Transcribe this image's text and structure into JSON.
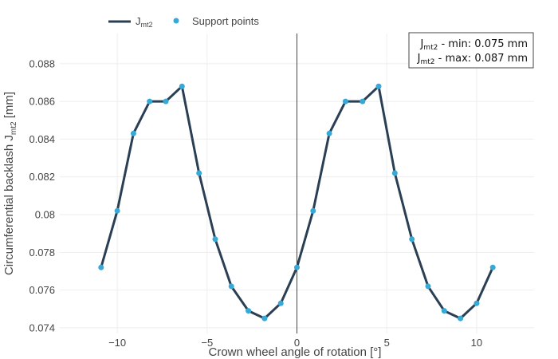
{
  "chart_data": {
    "type": "line",
    "xlabel": "Crown wheel angle of rotation [°]",
    "ylabel": {
      "main": "Circumferential backlash J",
      "sub": "mt2",
      "unit": " [mm]"
    },
    "xlim": [
      -13.2,
      13.2
    ],
    "ylim": [
      0.0737,
      0.0896
    ],
    "x_ticks": [
      -10,
      -5,
      0,
      5,
      10
    ],
    "x_tick_labels": [
      "−10",
      "−5",
      "0",
      "5",
      "10"
    ],
    "y_ticks": [
      0.074,
      0.076,
      0.078,
      0.08,
      0.082,
      0.084,
      0.086,
      0.088
    ],
    "y_tick_labels": [
      "0.074",
      "0.076",
      "0.078",
      "0.08",
      "0.082",
      "0.084",
      "0.086",
      "0.088"
    ],
    "grid": true,
    "zero_line_x": 0,
    "series": [
      {
        "name": "J_mt2",
        "legend_main": "J",
        "legend_sub": "mt2",
        "mode": "line",
        "color": "#2a3f54",
        "x": [
          -10.9,
          -10.0,
          -9.1,
          -8.2,
          -7.3,
          -6.4,
          -5.45,
          -4.55,
          -3.65,
          -2.7,
          -1.8,
          -0.9,
          0.0,
          0.9,
          1.8,
          2.7,
          3.65,
          4.55,
          5.45,
          6.4,
          7.3,
          8.2,
          9.1,
          10.0,
          10.9
        ],
        "y": [
          0.0772,
          0.0802,
          0.0843,
          0.086,
          0.086,
          0.0868,
          0.0822,
          0.0787,
          0.0762,
          0.0749,
          0.0745,
          0.0753,
          0.0772,
          0.0802,
          0.0843,
          0.086,
          0.086,
          0.0868,
          0.0822,
          0.0787,
          0.0762,
          0.0749,
          0.0745,
          0.0753,
          0.0772
        ]
      },
      {
        "name": "Support points",
        "mode": "markers",
        "color": "#36a9d6",
        "x": [
          -10.9,
          -10.0,
          -9.1,
          -8.2,
          -7.3,
          -6.4,
          -5.45,
          -4.55,
          -3.65,
          -2.7,
          -1.8,
          -0.9,
          0.0,
          0.9,
          1.8,
          2.7,
          3.65,
          4.55,
          5.45,
          6.4,
          7.3,
          8.2,
          9.1,
          10.0,
          10.9
        ],
        "y": [
          0.0772,
          0.0802,
          0.0843,
          0.086,
          0.086,
          0.0868,
          0.0822,
          0.0787,
          0.0762,
          0.0749,
          0.0745,
          0.0753,
          0.0772,
          0.0802,
          0.0843,
          0.086,
          0.086,
          0.0868,
          0.0822,
          0.0787,
          0.0762,
          0.0749,
          0.0745,
          0.0753,
          0.0772
        ]
      }
    ],
    "legend": {
      "placement": "top-left",
      "orientation": "horizontal"
    },
    "annotation": {
      "placement": "top-right",
      "lines": [
        {
          "main": "J",
          "sub": "mt2",
          "rest": " - min: 0.075 mm"
        },
        {
          "main": "J",
          "sub": "mt2",
          "rest": " - max: 0.087 mm"
        }
      ]
    },
    "colors": {
      "grid": "#eeeeee",
      "zero_line": "#444444",
      "annotation_border": "#444444"
    }
  }
}
